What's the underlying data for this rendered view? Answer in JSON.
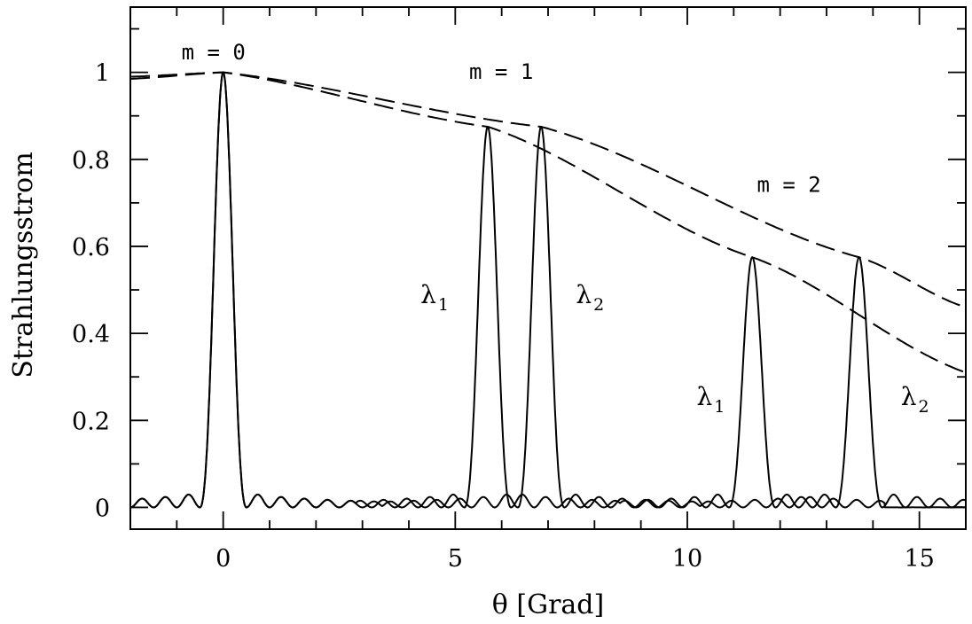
{
  "chart_data": {
    "type": "line",
    "xlabel": "θ [Grad]",
    "ylabel": "Strahlungsstrom",
    "xlim": [
      -2,
      16
    ],
    "ylim": [
      -0.05,
      1.15
    ],
    "xticks": [
      0,
      5,
      10,
      15
    ],
    "yticks": [
      0,
      0.2,
      0.4,
      0.6,
      0.8,
      1
    ],
    "ytick_labels": [
      "0",
      "0.2",
      "0.4",
      "0.6",
      "0.8",
      "1"
    ],
    "grid": false,
    "series": [
      {
        "style": "solid",
        "peaks": [
          {
            "x": 0,
            "y": 1.0
          },
          {
            "x": 5.7,
            "y": 0.875
          },
          {
            "x": 11.4,
            "y": 0.575
          }
        ]
      },
      {
        "style": "solid",
        "peaks": [
          {
            "x": 0,
            "y": 1.0
          },
          {
            "x": 6.85,
            "y": 0.875
          },
          {
            "x": 13.7,
            "y": 0.575
          }
        ]
      },
      {
        "style": "dashed",
        "x": [
          -2,
          0,
          5.7,
          11.4,
          16
        ],
        "y": [
          0.985,
          1.0,
          0.875,
          0.575,
          0.31
        ]
      },
      {
        "style": "dashed",
        "x": [
          -2,
          0,
          6.85,
          13.7,
          16
        ],
        "y": [
          0.99,
          1.0,
          0.875,
          0.575,
          0.46
        ]
      }
    ],
    "annotations": [
      {
        "text": "m  =  0",
        "x": -0.9,
        "y": 1.03
      },
      {
        "text": "m  =  1",
        "x": 5.3,
        "y": 0.985
      },
      {
        "text": "m  =  2",
        "x": 11.5,
        "y": 0.725
      },
      {
        "text": "λ",
        "sub": "1",
        "x": 4.25,
        "y": 0.47
      },
      {
        "text": "λ",
        "sub": "2",
        "x": 7.6,
        "y": 0.47
      },
      {
        "text": "λ",
        "sub": "1",
        "x": 10.2,
        "y": 0.235
      },
      {
        "text": "λ",
        "sub": "2",
        "x": 14.6,
        "y": 0.235
      }
    ]
  }
}
